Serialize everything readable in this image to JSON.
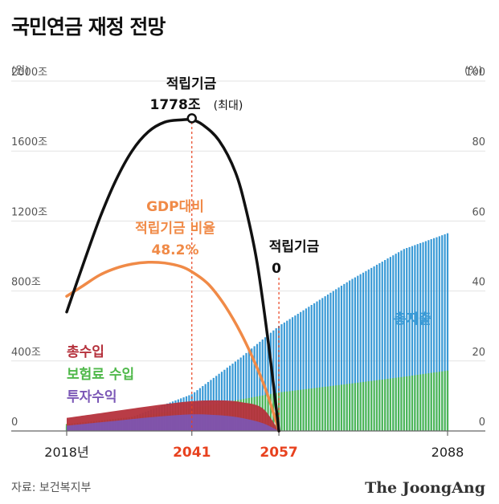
{
  "title": "국민연금 재정 전망",
  "source": "자료: 보건복지부",
  "brand": "The JoongAng",
  "chart_data": {
    "type": "bar+area+line",
    "x_range": [
      2018,
      2088
    ],
    "x_tick_labels": [
      "2018년",
      "2041",
      "2057",
      "2088"
    ],
    "highlighted_x_ticks": [
      "2041",
      "2057"
    ],
    "left_axis": {
      "unit": "(원)",
      "range": [
        0,
        2000
      ],
      "tick_labels": [
        "0",
        "400조",
        "800조",
        "1200조",
        "1600조",
        "2000조"
      ]
    },
    "right_axis": {
      "unit": "(%)",
      "range": [
        0,
        100
      ],
      "tick_labels": [
        "0",
        "20",
        "40",
        "60",
        "80",
        "100"
      ]
    },
    "grid": true,
    "series": [
      {
        "name": "적립기금",
        "color": "#111111",
        "kind": "line",
        "axis": "left",
        "points": [
          [
            2018,
            680
          ],
          [
            2021,
            950
          ],
          [
            2024,
            1210
          ],
          [
            2027,
            1430
          ],
          [
            2030,
            1600
          ],
          [
            2033,
            1710
          ],
          [
            2036,
            1765
          ],
          [
            2039,
            1778
          ],
          [
            2041,
            1778
          ],
          [
            2043,
            1750
          ],
          [
            2046,
            1660
          ],
          [
            2049,
            1480
          ],
          [
            2051,
            1260
          ],
          [
            2053,
            960
          ],
          [
            2055,
            520
          ],
          [
            2057,
            0
          ]
        ]
      },
      {
        "name": "GDP대비 적립기금 비율",
        "color": "#f08a47",
        "kind": "line",
        "axis": "right",
        "points": [
          [
            2018,
            38.5
          ],
          [
            2021,
            41.5
          ],
          [
            2024,
            44.5
          ],
          [
            2027,
            46.5
          ],
          [
            2030,
            47.7
          ],
          [
            2033,
            48.2
          ],
          [
            2036,
            48.0
          ],
          [
            2039,
            47.0
          ],
          [
            2041,
            45.5
          ],
          [
            2044,
            42.0
          ],
          [
            2047,
            36.0
          ],
          [
            2050,
            28.0
          ],
          [
            2053,
            18.0
          ],
          [
            2055,
            10.0
          ],
          [
            2057,
            0
          ]
        ]
      },
      {
        "name": "총지출",
        "color": "#3a9ad6",
        "kind": "bar",
        "axis": "left",
        "points": [
          [
            2018,
            25
          ],
          [
            2030,
            80
          ],
          [
            2041,
            210
          ],
          [
            2050,
            420
          ],
          [
            2057,
            600
          ],
          [
            2070,
            860
          ],
          [
            2080,
            1040
          ],
          [
            2088,
            1130
          ]
        ]
      },
      {
        "name": "보험료 수입",
        "color": "#4fb84a",
        "kind": "bar",
        "axis": "left",
        "points": [
          [
            2018,
            40
          ],
          [
            2030,
            80
          ],
          [
            2041,
            130
          ],
          [
            2050,
            180
          ],
          [
            2057,
            220
          ],
          [
            2070,
            270
          ],
          [
            2080,
            310
          ],
          [
            2088,
            345
          ]
        ]
      },
      {
        "name": "총수입",
        "color": "#b5313c",
        "kind": "area",
        "axis": "left",
        "points": [
          [
            2018,
            75
          ],
          [
            2026,
            110
          ],
          [
            2034,
            145
          ],
          [
            2041,
            170
          ],
          [
            2046,
            175
          ],
          [
            2050,
            165
          ],
          [
            2054,
            130
          ],
          [
            2057,
            0
          ]
        ]
      },
      {
        "name": "투자수익",
        "color": "#7b57b6",
        "kind": "area",
        "axis": "left",
        "points": [
          [
            2018,
            30
          ],
          [
            2026,
            55
          ],
          [
            2034,
            80
          ],
          [
            2041,
            95
          ],
          [
            2046,
            90
          ],
          [
            2050,
            75
          ],
          [
            2054,
            45
          ],
          [
            2057,
            0
          ]
        ]
      }
    ],
    "annotations": {
      "peak_label": "적립기금",
      "peak_value": "1778조",
      "peak_note": "(최대)",
      "ratio_label_1": "GDP대비",
      "ratio_label_2": "적립기금 비율",
      "ratio_value": "48.2%",
      "depletion_label": "적립기금",
      "depletion_value": "0"
    }
  }
}
